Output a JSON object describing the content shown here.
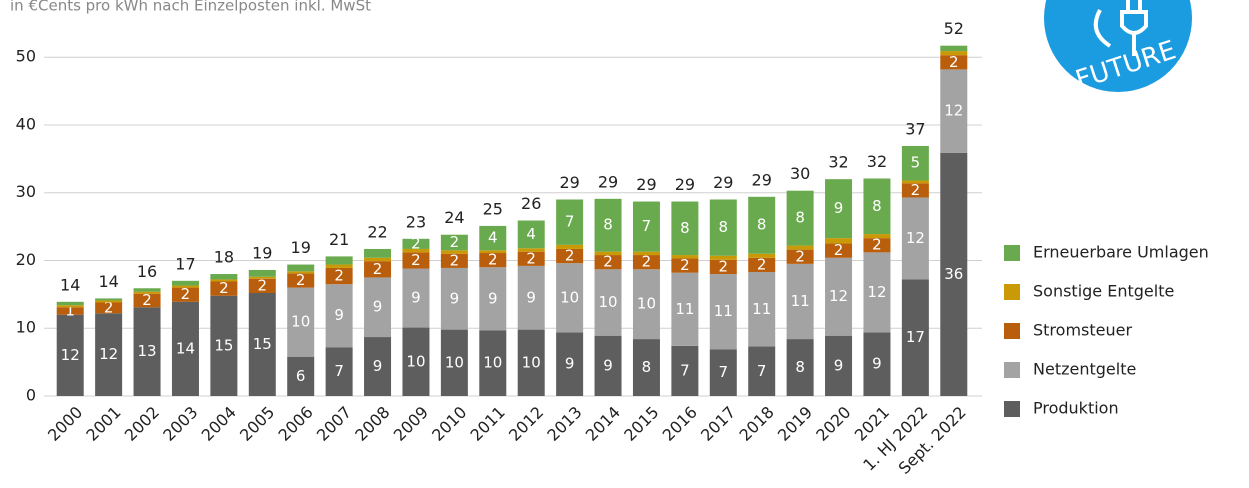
{
  "chart_data": {
    "type": "stacked_bar",
    "subtitle": "in €Cents pro kWh nach Einzelposten inkl. MwSt",
    "logo_text": "FUTURE",
    "categories": [
      "2000",
      "2001",
      "2002",
      "2003",
      "2004",
      "2005",
      "2006",
      "2007",
      "2008",
      "2009",
      "2010",
      "2011",
      "2012",
      "2013",
      "2014",
      "2015",
      "2016",
      "2017",
      "2018",
      "2019",
      "2020",
      "2021",
      "1. HJ 2022",
      "Sept. 2022"
    ],
    "series": [
      {
        "name": "Produktion",
        "color": "#5e5e5e",
        "values": [
          12,
          12.2,
          13.1,
          13.9,
          14.8,
          15.2,
          5.8,
          7.2,
          8.7,
          10.1,
          9.8,
          9.7,
          9.8,
          9.4,
          8.9,
          8.4,
          7.4,
          6.9,
          7.3,
          8.4,
          8.9,
          9.4,
          17.2,
          35.9
        ],
        "value_labels": [
          "12",
          "12",
          "13",
          "14",
          "15",
          "15",
          "6",
          "7",
          "9",
          "10",
          "10",
          "10",
          "10",
          "9",
          "9",
          "8",
          "7",
          "7",
          "7",
          "8",
          "9",
          "9",
          "17",
          "36"
        ]
      },
      {
        "name": "Netzentgelte",
        "color": "#a3a3a3",
        "values": [
          0,
          0,
          0,
          0,
          0,
          0,
          10.2,
          9.3,
          8.8,
          8.7,
          9.1,
          9.3,
          9.4,
          10.2,
          9.8,
          10.3,
          10.8,
          11.1,
          11.0,
          11.1,
          11.5,
          11.8,
          12.1,
          12.3
        ],
        "value_labels": [
          null,
          null,
          null,
          null,
          null,
          null,
          "10",
          "9",
          "9",
          "9",
          "9",
          "9",
          "9",
          "10",
          "10",
          "10",
          "11",
          "11",
          "11",
          "11",
          "12",
          "12",
          "12",
          "12"
        ]
      },
      {
        "name": "Stromsteuer",
        "color": "#b95e0c",
        "values": [
          1.1,
          1.6,
          2,
          2.1,
          2.1,
          2.1,
          2.1,
          2.4,
          2.4,
          2.4,
          2.1,
          2.1,
          2.1,
          2.1,
          2.1,
          2.1,
          2.1,
          2.1,
          2.1,
          2.1,
          2.1,
          2.1,
          2.1,
          2.1
        ],
        "value_labels": [
          "1",
          "2",
          "2",
          "2",
          "2",
          "2",
          "2",
          "2",
          "2",
          "2",
          "2",
          "2",
          "2",
          "2",
          "2",
          "2",
          "2",
          "2",
          "2",
          "2",
          "2",
          "2",
          "2",
          "2"
        ]
      },
      {
        "name": "Sonstige Entgelte",
        "color": "#c99a06",
        "values": [
          0.3,
          0.3,
          0.3,
          0.3,
          0.3,
          0.3,
          0.3,
          0.5,
          0.5,
          0.5,
          0.5,
          0.4,
          0.5,
          0.6,
          0.5,
          0.5,
          0.5,
          0.6,
          0.6,
          0.6,
          0.8,
          0.6,
          0.4,
          0.6
        ]
      },
      {
        "name": "Erneuerbare Umlagen",
        "color": "#6aaa4f",
        "values": [
          0.5,
          0.3,
          0.5,
          0.7,
          0.8,
          1,
          1,
          1.2,
          1.3,
          1.5,
          2.3,
          3.6,
          4.1,
          6.7,
          7.8,
          7.4,
          7.9,
          8.3,
          8.4,
          8.1,
          8.7,
          8.2,
          5.1,
          0.8
        ],
        "value_labels": [
          null,
          null,
          null,
          null,
          null,
          null,
          null,
          null,
          null,
          "2",
          "2",
          "4",
          "4",
          "7",
          "8",
          "7",
          "8",
          "8",
          "8",
          "8",
          "9",
          "8",
          "5",
          null
        ]
      }
    ],
    "totals": [
      14,
      14,
      16,
      17,
      18,
      19,
      19,
      21,
      22,
      23,
      24,
      25,
      26,
      29,
      29,
      29,
      29,
      29,
      29,
      30,
      32,
      32,
      37,
      52
    ],
    "ylim": [
      0,
      58
    ],
    "yticks": [
      0,
      10,
      20,
      30,
      40,
      50
    ],
    "grid": true,
    "legend": "right"
  }
}
